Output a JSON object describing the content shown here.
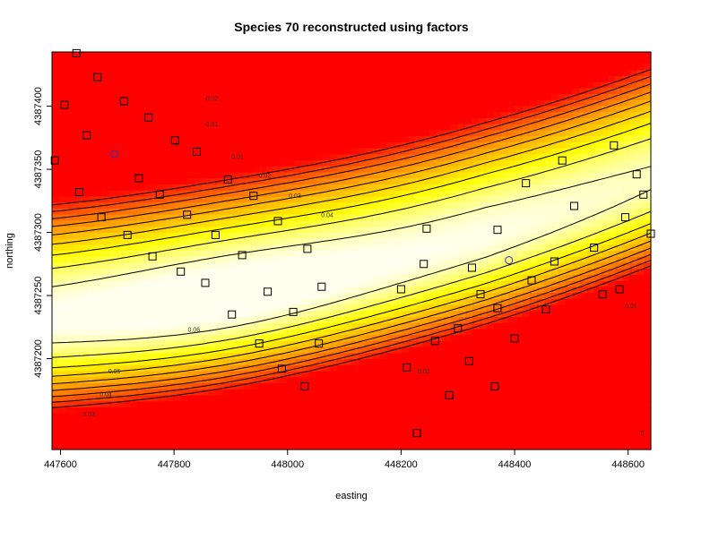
{
  "chart_data": {
    "type": "heatmap",
    "title": "Species 70 reconstructed using factors",
    "xlabel": "easting",
    "ylabel": "northing",
    "xlim": [
      447585,
      448640
    ],
    "ylim": [
      4387128,
      4387443
    ],
    "x_ticks": [
      447600,
      447800,
      448000,
      448200,
      448400,
      448600
    ],
    "y_ticks": [
      4387200,
      4387250,
      4387300,
      4387350,
      4387400
    ],
    "x_tick_labels": [
      "447600",
      "447800",
      "448000",
      "448200",
      "448400",
      "448600"
    ],
    "y_tick_labels": [
      "4387200",
      "4387250",
      "4387300",
      "4387350",
      "4387400"
    ],
    "color_scheme": "heat (red = low, light yellow = high)",
    "surface": {
      "field": "0.061 - 0.015*(n - f(e))^2/15^2 ... approximated",
      "value_range": [
        -0.03,
        0.065
      ]
    },
    "contours": [
      {
        "level": -0.02,
        "label": "-0.02"
      },
      {
        "level": -0.01,
        "label": "-0.01"
      },
      {
        "level": 0.0,
        "label": "0"
      },
      {
        "level": 0.01,
        "label": "0.01"
      },
      {
        "level": 0.02,
        "label": "0.02"
      },
      {
        "level": 0.03,
        "label": "0.03"
      },
      {
        "level": 0.04,
        "label": "0.04"
      },
      {
        "level": 0.05,
        "label": "0.05"
      },
      {
        "level": 0.06,
        "label": "0.06"
      }
    ],
    "contour_label_positions": [
      {
        "label": "-0.02",
        "x": 447865,
        "y": 4387406
      },
      {
        "label": "-0.01",
        "x": 447865,
        "y": 4387386
      },
      {
        "label": "0",
        "x": 447805,
        "y": 4387370
      },
      {
        "label": "0.01",
        "x": 447912,
        "y": 4387360
      },
      {
        "label": "0.02",
        "x": 447960,
        "y": 4387345
      },
      {
        "label": "0.03",
        "x": 448013,
        "y": 4387329
      },
      {
        "label": "0.04",
        "x": 448070,
        "y": 4387314
      },
      {
        "label": "0.06",
        "x": 447835,
        "y": 4387223
      },
      {
        "label": "0.05",
        "x": 447695,
        "y": 4387190
      },
      {
        "label": "0.04",
        "x": 447680,
        "y": 4387172
      },
      {
        "label": "0.03",
        "x": 447650,
        "y": 4387156
      },
      {
        "label": "0.02",
        "x": 448240,
        "y": 4387190
      },
      {
        "label": "0.01",
        "x": 448605,
        "y": 4387242
      },
      {
        "label": "0",
        "x": 448625,
        "y": 4387141
      }
    ],
    "square_points": [
      [
        447628,
        4387442
      ],
      [
        447665,
        4387423
      ],
      [
        447712,
        4387404
      ],
      [
        447607,
        4387401
      ],
      [
        447755,
        4387391
      ],
      [
        447646,
        4387377
      ],
      [
        447802,
        4387373
      ],
      [
        447840,
        4387364
      ],
      [
        447590,
        4387357
      ],
      [
        447738,
        4387343
      ],
      [
        447633,
        4387332
      ],
      [
        447895,
        4387342
      ],
      [
        447775,
        4387330
      ],
      [
        447940,
        4387329
      ],
      [
        447823,
        4387314
      ],
      [
        447672,
        4387312
      ],
      [
        447718,
        4387298
      ],
      [
        447873,
        4387298
      ],
      [
        447983,
        4387309
      ],
      [
        448370,
        4387302
      ],
      [
        448245,
        4387303
      ],
      [
        447762,
        4387281
      ],
      [
        447920,
        4387282
      ],
      [
        448035,
        4387287
      ],
      [
        448325,
        4387272
      ],
      [
        448470,
        4387277
      ],
      [
        448627,
        4387330
      ],
      [
        448540,
        4387288
      ],
      [
        448615,
        4387346
      ],
      [
        448575,
        4387369
      ],
      [
        448484,
        4387357
      ],
      [
        448420,
        4387339
      ],
      [
        448585,
        4387255
      ],
      [
        448430,
        4387262
      ],
      [
        447812,
        4387269
      ],
      [
        447965,
        4387253
      ],
      [
        448060,
        4387257
      ],
      [
        448200,
        4387255
      ],
      [
        448240,
        4387275
      ],
      [
        448340,
        4387251
      ],
      [
        448455,
        4387239
      ],
      [
        448370,
        4387240
      ],
      [
        447855,
        4387260
      ],
      [
        447902,
        4387235
      ],
      [
        448010,
        4387237
      ],
      [
        448300,
        4387224
      ],
      [
        448400,
        4387216
      ],
      [
        448260,
        4387214
      ],
      [
        448055,
        4387212
      ],
      [
        447950,
        4387212
      ],
      [
        448210,
        4387193
      ],
      [
        448320,
        4387198
      ],
      [
        448365,
        4387178
      ],
      [
        448285,
        4387171
      ],
      [
        447990,
        4387192
      ],
      [
        448030,
        4387178
      ],
      [
        448228,
        4387141
      ],
      [
        448555,
        4387251
      ],
      [
        448505,
        4387321
      ],
      [
        448595,
        4387312
      ],
      [
        448640,
        4387299
      ]
    ],
    "circle_points": [
      [
        447695,
        4387362
      ],
      [
        448390,
        4387278
      ]
    ]
  }
}
